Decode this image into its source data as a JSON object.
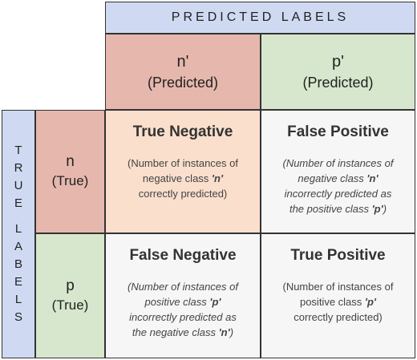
{
  "predicted_header": "PREDICTED LABELS",
  "true_header_letters_top": [
    "T",
    "R",
    "U",
    "E"
  ],
  "true_header_letters_bottom": [
    "L",
    "A",
    "B",
    "E",
    "L",
    "S"
  ],
  "columns": {
    "n": {
      "main": "n'",
      "sub": "(Predicted)"
    },
    "p": {
      "main": "p'",
      "sub": "(Predicted)"
    }
  },
  "rows": {
    "n": {
      "main": "n",
      "sub": "(True)"
    },
    "p": {
      "main": "p",
      "sub": "(True)"
    }
  },
  "cells": {
    "tn": {
      "title": "True Negative",
      "lines": [
        "(Number of instances of",
        "negative class ",
        "'n'",
        "correctly predicted)"
      ]
    },
    "fp": {
      "title": "False Positive",
      "l1": "(Number of instances of",
      "l2a": "negative class ",
      "l2b": "'n'",
      "l3": "incorrectly predicted as",
      "l4a": "the positive class ",
      "l4b": "'p'",
      "l4c": ")"
    },
    "fn": {
      "title": "False Negative",
      "l1": "(Number of instances of",
      "l2a": "positive class ",
      "l2b": "'p'",
      "l3": "incorrectly predicted as",
      "l4a": "the negative class ",
      "l4b": "'n'",
      "l4c": ")"
    },
    "tp": {
      "title": "True Positive",
      "l1": "(Number of instances of",
      "l2a": "positive class ",
      "l2b": "'p'",
      "l3": "correctly predicted)"
    }
  },
  "colors": {
    "header_blue": "#cfdaf2",
    "negative_red": "#e6b7ad",
    "positive_green": "#d7e7cd",
    "true_negative_peach": "#fadfcc",
    "neutral_gray": "#f6f6f6"
  }
}
